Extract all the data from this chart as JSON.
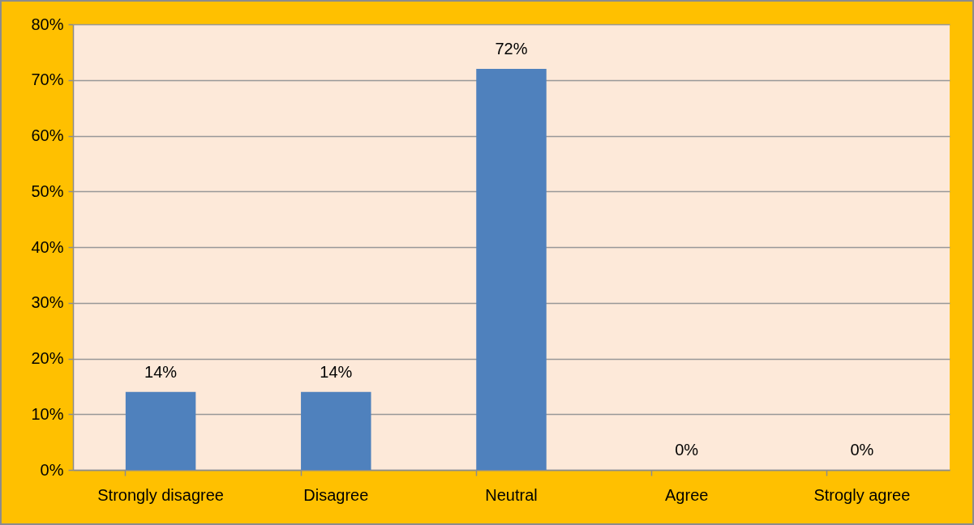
{
  "chart_data": {
    "type": "bar",
    "categories": [
      "Strongly disagree",
      "Disagree",
      "Neutral",
      "Agree",
      "Strogly agree"
    ],
    "values": [
      14,
      14,
      72,
      0,
      0
    ],
    "color": "#4f81bd",
    "value_labels": [
      "14%",
      "14%",
      "72%",
      "0%",
      "0%"
    ],
    "ylim": [
      0,
      80
    ],
    "yticks": [
      {
        "value": 0,
        "label": "0%"
      },
      {
        "value": 10,
        "label": "10%"
      },
      {
        "value": 20,
        "label": "20%"
      },
      {
        "value": 30,
        "label": "30%"
      },
      {
        "value": 40,
        "label": "40%"
      },
      {
        "value": 50,
        "label": "50%"
      },
      {
        "value": 60,
        "label": "60%"
      },
      {
        "value": 70,
        "label": "70%"
      },
      {
        "value": 80,
        "label": "80%"
      }
    ],
    "grid": "y"
  }
}
